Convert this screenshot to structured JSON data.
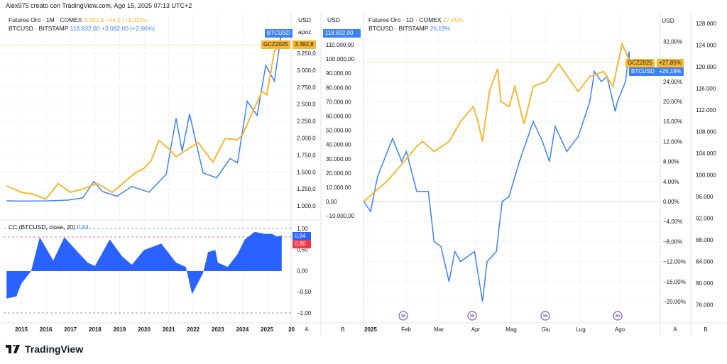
{
  "header": {
    "text": "Alex975 creato con TradingView.com, Ago 15, 2025 07:13 UTC+2"
  },
  "colors": {
    "gold": "#f7b731",
    "btc": "#3b82f6",
    "cc_fill": "#2962ff",
    "red": "#f23645",
    "event": "#7e57c2"
  },
  "left": {
    "legend1": {
      "name": "Futures Oro · 1M · COMEX",
      "value": "3.392,8",
      "change": "+44,2 (+1,32%)"
    },
    "legend2": {
      "name": "BTCUSD · BITSTAMP",
      "value": "118.832,00",
      "change": "+3.082,00 (+2,66%)"
    },
    "axis_a": {
      "unit": "USD",
      "ticks": [
        "3.250,0",
        "3.000,0",
        "2.750,0",
        "2.500,0",
        "2.250,0",
        "2.000,0",
        "1.750,0",
        "1.500,0",
        "1.250,0",
        "1.000,0"
      ],
      "label_apoz": "apoz"
    },
    "axis_b": {
      "unit": "USD",
      "ticks": [
        "110.000,00",
        "100.000,00",
        "90.000,00",
        "80.000,00",
        "70.000,00",
        "60.000,00",
        "50.000,00",
        "40.000,00",
        "30.000,00",
        "20.000,00",
        "10.000,00",
        "0,00",
        "−10.000,00"
      ]
    },
    "tags": {
      "btc_name": "BTCUSD",
      "btc_price": "118.832,00",
      "gold_name": "GCZ2025",
      "gold_price": "3.392,8"
    },
    "cc": {
      "legend": "CC (BTCUSD, close, 20)",
      "value": "0,84",
      "ticks": [
        "1,00",
        "0,50",
        "0,00",
        "−0,50",
        "−1,00"
      ],
      "tag_value": "0,84",
      "tag_level": "0,80"
    },
    "time_ticks": [
      "2015",
      "2016",
      "2017",
      "2018",
      "2019",
      "2020",
      "2021",
      "2022",
      "2023",
      "2024",
      "2025",
      "20"
    ],
    "scale_labels": [
      "A",
      "B"
    ]
  },
  "right": {
    "legend1": {
      "name": "Futures Oro · 1D · COMEX",
      "value": "27,85%"
    },
    "legend2": {
      "name": "BTCUSD · BITSTAMP",
      "value": "26,19%"
    },
    "axis_a": {
      "unit": "USD",
      "ticks": [
        "32,00%",
        "24,00%",
        "20,00%",
        "16,00%",
        "12,00%",
        "8,00%",
        "4,00%",
        "0,00%",
        "−4,00%",
        "−8,00%",
        "−12,00%",
        "−16,00%",
        "−20,00%"
      ]
    },
    "axis_b": {
      "ticks": [
        "128.000",
        "124.000",
        "120.000",
        "116.000",
        "112.000",
        "108.000",
        "104.000",
        "100.000",
        "96.000",
        "92.000",
        "88.000",
        "84.000",
        "80.000",
        "76.000"
      ]
    },
    "tags": {
      "gold_name": "GCZ2025",
      "gold_pct": "+27,85%",
      "btc_name": "BTCUSD",
      "btc_pct": "+26,19%"
    },
    "time_ticks": [
      "2025",
      "Feb",
      "Mar",
      "Apr",
      "Mag",
      "Giu",
      "Lug",
      "Ago"
    ],
    "scale_labels": [
      "A",
      "B"
    ]
  },
  "logo": {
    "text": "TradingView"
  },
  "chart_data": [
    {
      "type": "line",
      "title": "",
      "x_unit": "year",
      "series": [
        {
          "name": "Futures Oro · 1M · COMEX",
          "scale": "A",
          "x": [
            2014.4,
            2015.0,
            2015.5,
            2016.0,
            2016.5,
            2017.0,
            2017.5,
            2018.1,
            2018.7,
            2019.0,
            2019.6,
            2020.0,
            2020.3,
            2020.6,
            2021.0,
            2021.3,
            2021.6,
            2022.2,
            2022.8,
            2023.3,
            2023.8,
            2024.0,
            2024.3,
            2024.8,
            2025.0,
            2025.3,
            2025.6
          ],
          "y": [
            1295,
            1200,
            1170,
            1100,
            1330,
            1200,
            1250,
            1330,
            1200,
            1290,
            1480,
            1560,
            1680,
            1970,
            1850,
            1730,
            1800,
            1940,
            1650,
            2000,
            1980,
            2050,
            2300,
            2700,
            2650,
            3300,
            3393
          ]
        },
        {
          "name": "BTCUSD · BITSTAMP",
          "scale": "B",
          "x": [
            2014.4,
            2015.0,
            2016.0,
            2016.9,
            2017.5,
            2017.95,
            2018.3,
            2018.9,
            2019.5,
            2020.2,
            2020.9,
            2021.3,
            2021.55,
            2021.85,
            2022.4,
            2022.95,
            2023.5,
            2023.8,
            2024.2,
            2024.6,
            2024.95,
            2025.3,
            2025.6
          ],
          "y": [
            500,
            300,
            430,
            1000,
            2500,
            14000,
            7000,
            3700,
            10500,
            6500,
            19000,
            58000,
            35000,
            61000,
            20000,
            16500,
            30000,
            27000,
            70000,
            60000,
            95000,
            84000,
            118832
          ]
        }
      ]
    },
    {
      "type": "area",
      "title": "CC (BTCUSD, close, 20)",
      "ylim": [
        -1,
        1
      ],
      "levels": [
        1,
        0.8,
        -1
      ],
      "x": [
        2014.4,
        2014.8,
        2015.0,
        2015.4,
        2015.75,
        2016.3,
        2016.75,
        2017.3,
        2017.7,
        2018.0,
        2018.6,
        2019.1,
        2019.5,
        2020.0,
        2020.7,
        2021.3,
        2021.7,
        2021.95,
        2022.4,
        2022.6,
        2022.9,
        2023.0,
        2023.4,
        2023.8,
        2024.1,
        2024.5,
        2024.9,
        2025.2,
        2025.4,
        2025.6
      ],
      "y": [
        -0.65,
        -0.6,
        -0.3,
        0.0,
        0.8,
        0.25,
        0.8,
        0.45,
        0.2,
        0.12,
        0.75,
        0.35,
        0.15,
        0.5,
        0.65,
        0.2,
        0.1,
        -0.55,
        -0.05,
        0.45,
        0.5,
        0.2,
        0.1,
        0.4,
        0.75,
        0.93,
        0.88,
        0.88,
        0.82,
        0.84
      ]
    },
    {
      "type": "line",
      "title": "",
      "y_unit": "%",
      "series": [
        {
          "name": "Futures Oro · 1D · COMEX",
          "x": [
            "2024-12-26",
            "2025-01-05",
            "2025-01-15",
            "2025-01-30",
            "2025-02-10",
            "2025-02-15",
            "2025-02-25",
            "2025-03-10",
            "2025-03-20",
            "2025-03-31",
            "2025-04-03",
            "2025-04-08",
            "2025-04-14",
            "2025-04-21",
            "2025-04-24",
            "2025-05-01",
            "2025-05-06",
            "2025-05-14",
            "2025-05-22",
            "2025-06-02",
            "2025-06-13",
            "2025-06-30",
            "2025-07-10",
            "2025-07-22",
            "2025-07-30",
            "2025-08-07",
            "2025-08-14"
          ],
          "y": [
            0,
            2,
            4,
            8,
            11,
            12,
            10,
            12,
            16,
            19,
            17,
            12,
            22,
            26.5,
            20,
            19,
            23,
            15.5,
            23,
            24,
            27.5,
            22,
            25,
            26,
            23,
            31.5,
            27.85
          ]
        },
        {
          "name": "BTCUSD · BITSTAMP",
          "x": [
            "2024-12-26",
            "2025-01-01",
            "2025-01-07",
            "2025-01-20",
            "2025-01-28",
            "2025-02-01",
            "2025-02-10",
            "2025-02-20",
            "2025-02-25",
            "2025-03-03",
            "2025-03-10",
            "2025-03-15",
            "2025-03-20",
            "2025-04-01",
            "2025-04-08",
            "2025-04-12",
            "2025-04-20",
            "2025-04-25",
            "2025-05-01",
            "2025-05-10",
            "2025-05-22",
            "2025-05-30",
            "2025-06-05",
            "2025-06-10",
            "2025-06-20",
            "2025-06-30",
            "2025-07-10",
            "2025-07-14",
            "2025-07-20",
            "2025-07-25",
            "2025-08-01",
            "2025-08-03",
            "2025-08-10",
            "2025-08-13",
            "2025-08-14"
          ],
          "y": [
            0,
            -2,
            5,
            12.6,
            8,
            10,
            2,
            2,
            -8,
            -9,
            -16,
            -10,
            -12,
            -10,
            -20,
            -12,
            -10,
            0,
            1,
            8,
            16,
            12,
            8,
            15,
            10,
            13,
            20,
            26,
            24,
            25,
            18,
            20,
            24,
            30,
            26.19
          ]
        }
      ]
    }
  ]
}
